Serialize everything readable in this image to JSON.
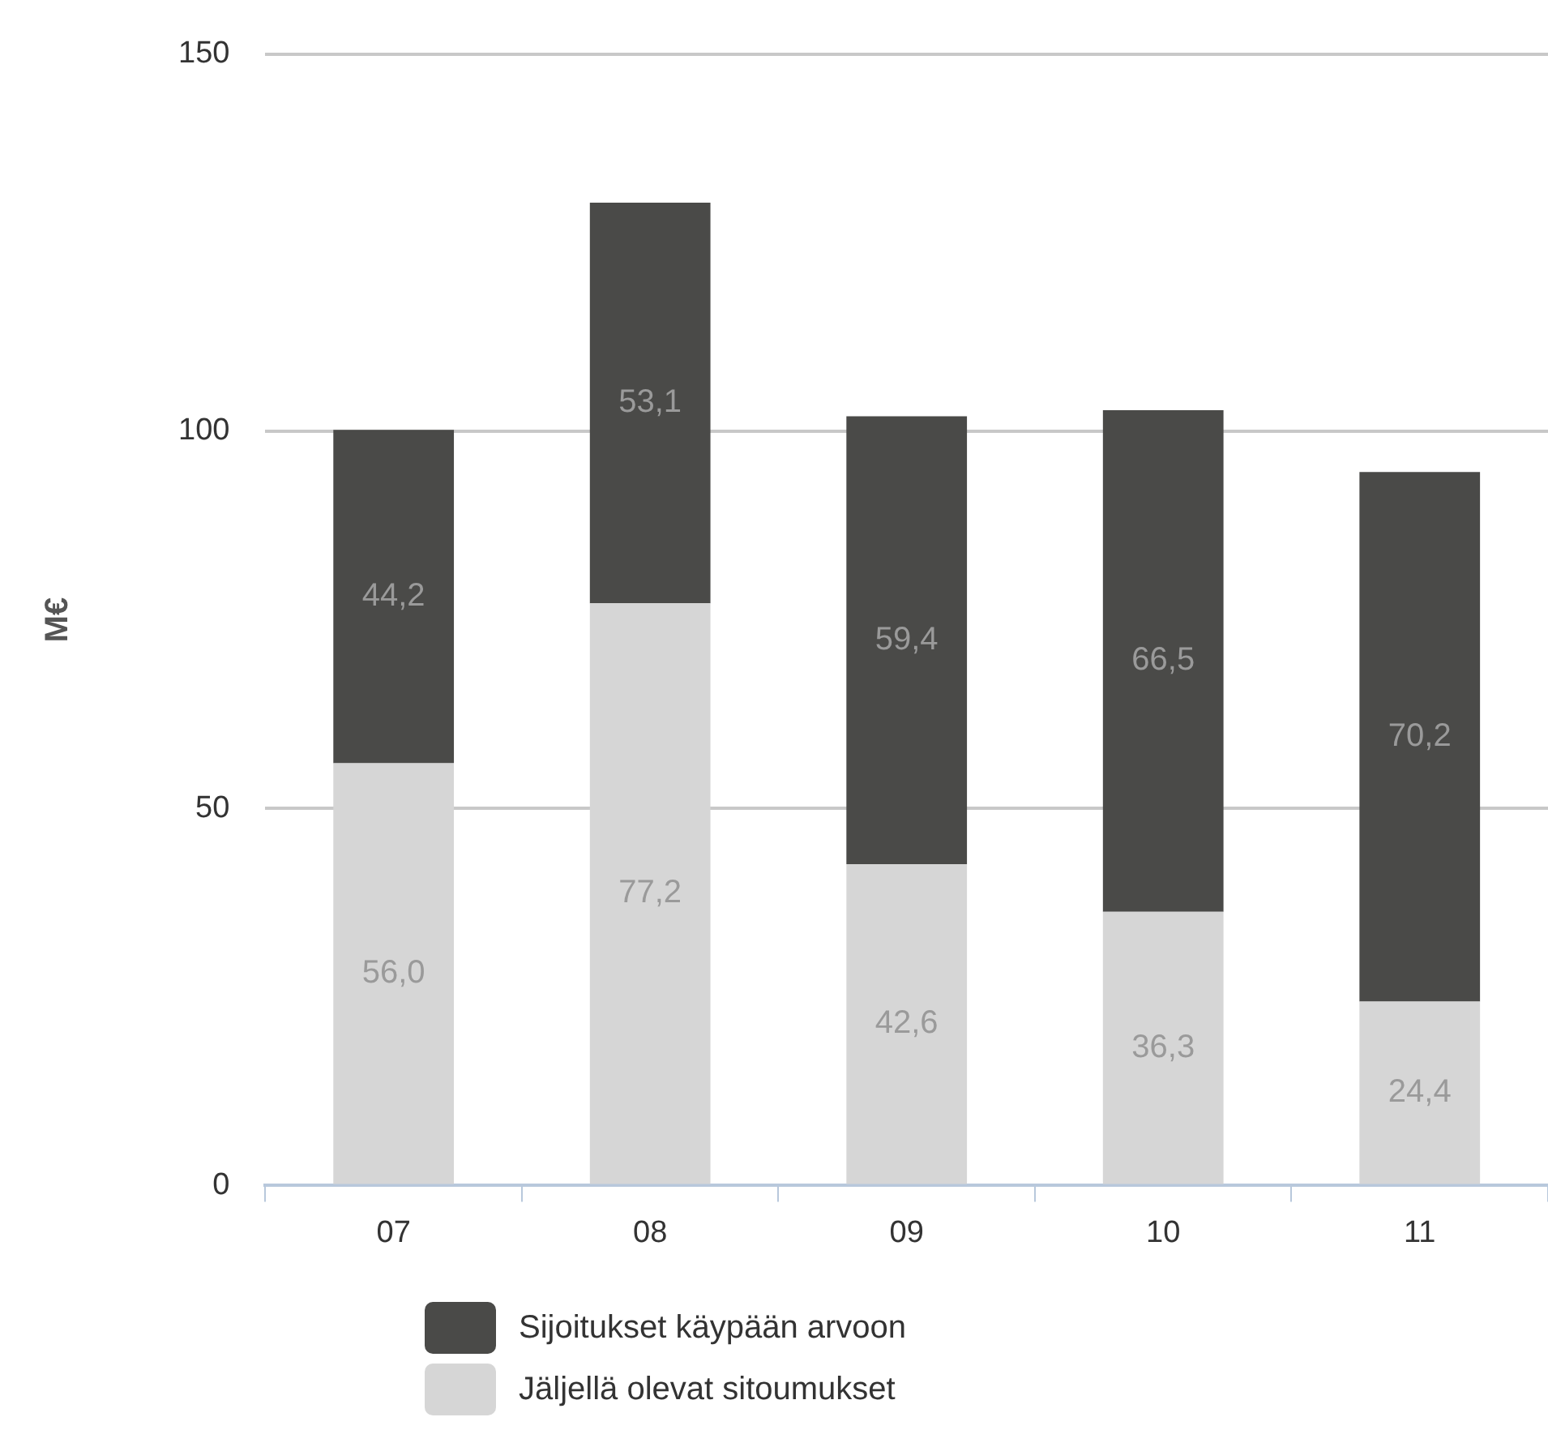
{
  "chart_data": {
    "type": "bar",
    "stacked": true,
    "ylabel": "M€",
    "categories": [
      "07",
      "08",
      "09",
      "10",
      "11"
    ],
    "series": [
      {
        "name": "Jäljellä olevat sitoumukset",
        "color": "#d6d6d6",
        "values": [
          56.0,
          77.2,
          42.6,
          36.3,
          24.4
        ],
        "value_labels": [
          "56,0",
          "77,2",
          "42,6",
          "36,3",
          "24,4"
        ]
      },
      {
        "name": "Sijoitukset käypään arvoon",
        "color": "#4a4a48",
        "values": [
          44.2,
          53.1,
          59.4,
          66.5,
          70.2
        ],
        "value_labels": [
          "44,2",
          "53,1",
          "59,4",
          "66,5",
          "70,2"
        ]
      }
    ],
    "ylim": [
      0,
      150
    ],
    "yticks": [
      0,
      50,
      100,
      150
    ],
    "grid": "y",
    "legend": "bottom"
  }
}
